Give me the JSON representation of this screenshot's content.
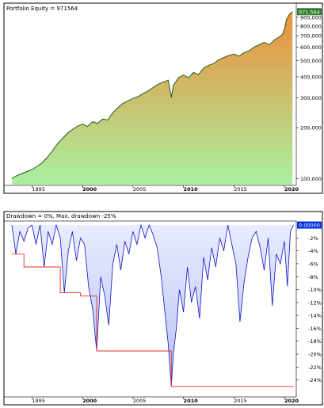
{
  "chart_data": [
    {
      "type": "area",
      "title": "Portfolio Equity = 971564",
      "value_badge": "971,564",
      "x_tick_labels": [
        "1995",
        "2000",
        "2005",
        "2010",
        "2015",
        "2020"
      ],
      "x_tick_bold": [
        false,
        true,
        false,
        true,
        false,
        true
      ],
      "y_scale": "log",
      "ylim": [
        92000,
        1080000
      ],
      "y_tick_labels": [
        "900,000",
        "800,000",
        "700,000",
        "600,000",
        "500,000",
        "400,000",
        "300,000",
        "200,000",
        "100,000"
      ],
      "y_tick_values": [
        900000,
        800000,
        700000,
        600000,
        500000,
        400000,
        300000,
        200000,
        100000
      ],
      "x": [
        1993.0,
        1993.5,
        1994.0,
        1994.5,
        1995.0,
        1995.5,
        1996.0,
        1996.5,
        1997.0,
        1997.5,
        1998.0,
        1998.5,
        1999.0,
        1999.5,
        2000.0,
        2000.5,
        2001.0,
        2001.5,
        2002.0,
        2002.5,
        2003.0,
        2003.5,
        2004.0,
        2004.5,
        2005.0,
        2005.5,
        2006.0,
        2006.5,
        2007.0,
        2007.5,
        2008.0,
        2008.5,
        2008.8,
        2009.0,
        2009.5,
        2010.0,
        2010.5,
        2011.0,
        2011.5,
        2012.0,
        2012.5,
        2013.0,
        2013.5,
        2014.0,
        2014.5,
        2015.0,
        2015.5,
        2016.0,
        2016.5,
        2017.0,
        2017.5,
        2018.0,
        2018.5,
        2019.0,
        2019.5,
        2019.8,
        2020.0,
        2020.2,
        2020.5,
        2020.8
      ],
      "values": [
        100000,
        104000,
        107000,
        110000,
        113000,
        118000,
        124000,
        133000,
        145000,
        160000,
        172000,
        185000,
        195000,
        204000,
        210000,
        203000,
        217000,
        212000,
        225000,
        222000,
        245000,
        262000,
        278000,
        288000,
        298000,
        305000,
        318000,
        330000,
        345000,
        362000,
        372000,
        382000,
        302000,
        355000,
        395000,
        410000,
        395000,
        425000,
        412000,
        450000,
        468000,
        480000,
        505000,
        520000,
        535000,
        545000,
        530000,
        555000,
        570000,
        600000,
        620000,
        640000,
        618000,
        660000,
        690000,
        710000,
        760000,
        870000,
        940000,
        971564
      ]
    },
    {
      "type": "line",
      "title": "Drawdown = 0%, Max. drawdown -25%",
      "value_badge": "0.00000",
      "x_tick_labels": [
        "1995",
        "2000",
        "2005",
        "2010",
        "2015",
        "2020"
      ],
      "x_tick_bold": [
        false,
        true,
        false,
        true,
        false,
        true
      ],
      "ylim": [
        -26.5,
        0.5
      ],
      "y_tick_labels": [
        "-2%",
        "-4%",
        "-6%",
        "-8%",
        "-10%",
        "-12%",
        "-14%",
        "-16%",
        "-18%",
        "-20%",
        "-22%",
        "-24%"
      ],
      "y_tick_values": [
        -2,
        -4,
        -6,
        -8,
        -10,
        -12,
        -14,
        -16,
        -18,
        -20,
        -22,
        -24
      ],
      "x": [
        1993.0,
        1993.4,
        1993.8,
        1994.2,
        1994.6,
        1995.0,
        1995.4,
        1995.8,
        1996.2,
        1996.6,
        1997.0,
        1997.4,
        1997.8,
        1998.2,
        1998.6,
        1999.0,
        1999.4,
        1999.8,
        2000.2,
        2000.6,
        2001.0,
        2001.4,
        2001.8,
        2002.2,
        2002.6,
        2003.0,
        2003.4,
        2003.8,
        2004.2,
        2004.6,
        2005.0,
        2005.4,
        2005.8,
        2006.2,
        2006.6,
        2007.0,
        2007.4,
        2007.8,
        2008.2,
        2008.5,
        2008.8,
        2009.0,
        2009.3,
        2009.6,
        2010.0,
        2010.4,
        2010.8,
        2011.2,
        2011.6,
        2012.0,
        2012.4,
        2012.8,
        2013.2,
        2013.6,
        2014.0,
        2014.4,
        2014.8,
        2015.2,
        2015.6,
        2016.0,
        2016.4,
        2016.8,
        2017.2,
        2017.6,
        2018.0,
        2018.4,
        2018.8,
        2019.2,
        2019.6,
        2020.0,
        2020.3,
        2020.6,
        2020.9
      ],
      "values": [
        0,
        -4.5,
        -1.0,
        -2.5,
        -0.5,
        0,
        -3.0,
        0,
        -6.5,
        -1.0,
        -3.0,
        0,
        -2.0,
        -10.5,
        -4.0,
        -1.0,
        -5.5,
        -2.0,
        -3.0,
        -9.5,
        -13.0,
        -19.5,
        -8.0,
        -11.0,
        -15.5,
        -6.0,
        -3.0,
        -7.0,
        -2.5,
        -4.5,
        -1.0,
        -3.0,
        0,
        -2.0,
        0,
        -1.5,
        -3.5,
        -8.0,
        -14.0,
        -18.5,
        -25.0,
        -20.0,
        -16.0,
        -10.0,
        -13.5,
        -6.5,
        -12.0,
        -9.5,
        -14.5,
        -5.0,
        -8.5,
        -3.5,
        -6.5,
        -2.0,
        -4.0,
        0,
        -3.0,
        -6.0,
        -15.0,
        -9.0,
        -5.0,
        -2.0,
        -1.0,
        -3.5,
        -7.0,
        -2.0,
        -12.5,
        -4.5,
        -6.0,
        -2.5,
        -9.5,
        -1.0,
        0
      ],
      "max_drawdown_x": [
        1993.0,
        1994.2,
        1994.2,
        1997.8,
        1997.8,
        1999.8,
        1999.8,
        2001.4,
        2001.4,
        2008.8,
        2008.8,
        2020.9
      ],
      "max_drawdown_y": [
        -4.5,
        -4.5,
        -6.5,
        -6.5,
        -10.5,
        -10.5,
        -11.0,
        -11.0,
        -19.5,
        -19.5,
        -25.0,
        -25.0
      ]
    }
  ],
  "colors": {
    "equity_line": "#1e5a1e",
    "equity_fill_top": "#ee8f3a",
    "equity_fill_bottom": "#a8f0a0",
    "drawdown_line": "#1010d0",
    "drawdown_fill": "#b8c0f0",
    "max_drawdown_line": "#e03020",
    "badge_equity": "#2d7a2d",
    "badge_drawdown": "#0030e0"
  }
}
